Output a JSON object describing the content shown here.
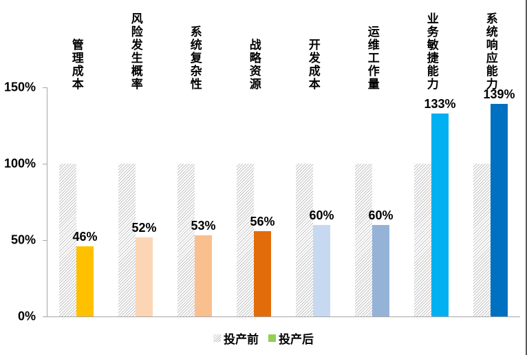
{
  "chart_data": {
    "type": "bar",
    "title": "",
    "categories": [
      "管理成本",
      "风险发生概率",
      "系统复杂性",
      "战略资源",
      "开发成本",
      "运维工作量",
      "业务敏捷能力",
      "系统响应能力"
    ],
    "series": [
      {
        "name": "投产前",
        "values": [
          100,
          100,
          100,
          100,
          100,
          100,
          100,
          100
        ],
        "style": "hatched-gray"
      },
      {
        "name": "投产后",
        "values": [
          46,
          52,
          53,
          56,
          60,
          60,
          133,
          139
        ],
        "colors": [
          "#FFC000",
          "#FCD5B4",
          "#FABF8F",
          "#E36C0A",
          "#C6D9F1",
          "#95B3D7",
          "#00B0F0",
          "#0070C0"
        ]
      }
    ],
    "value_labels": [
      "46%",
      "52%",
      "53%",
      "56%",
      "60%",
      "60%",
      "133%",
      "139%"
    ],
    "y_ticks": [
      "150%",
      "100%",
      "50%",
      "0%"
    ],
    "ylim": [
      0,
      150
    ],
    "grid": false,
    "legend_position": "bottom-center",
    "axis_color": "#A6A6A6",
    "hatch_line_color": "#C4C4C4"
  },
  "legend": {
    "before_label": "投产前",
    "after_label": "投产后",
    "after_swatch_color": "#92D050"
  }
}
